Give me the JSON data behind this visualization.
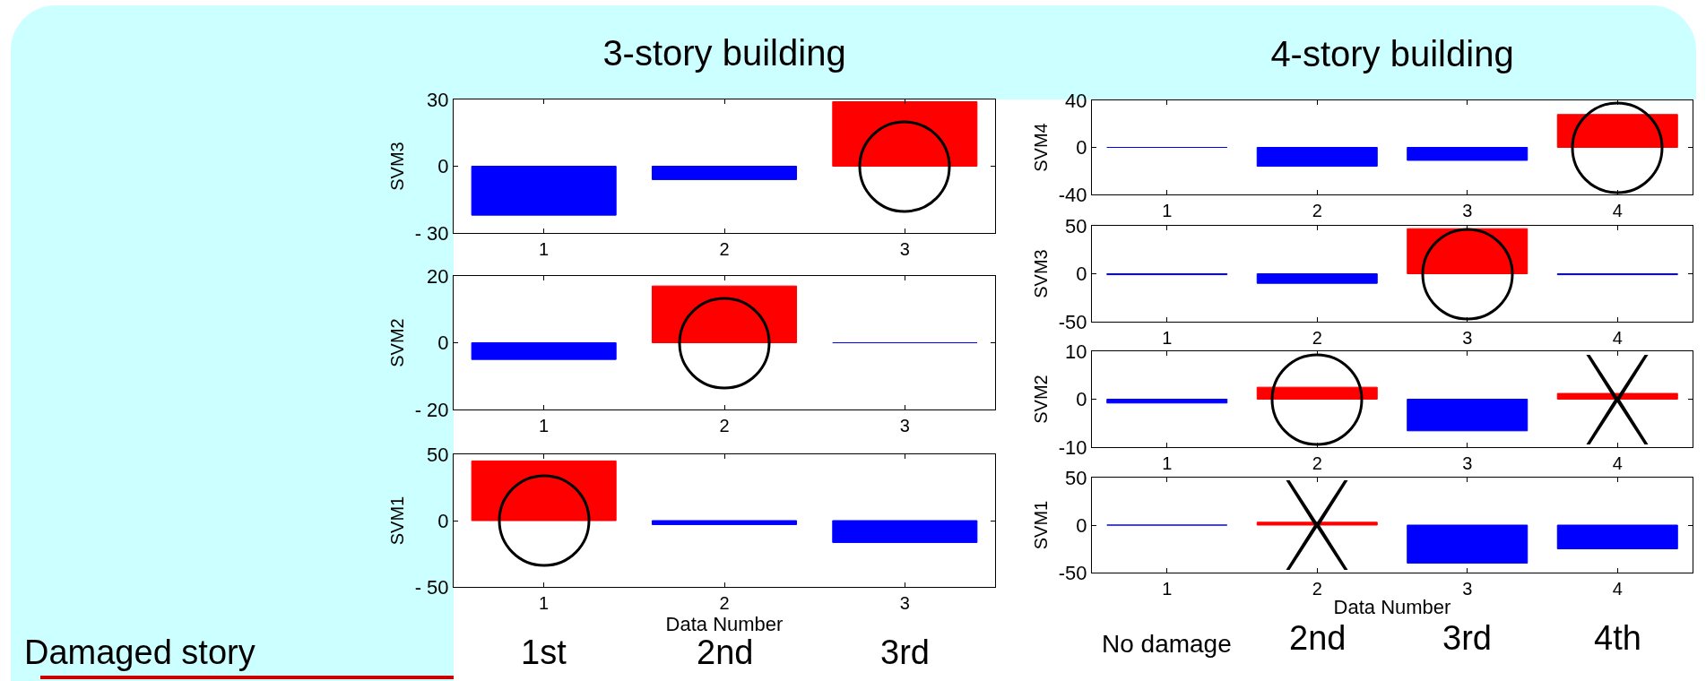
{
  "chart_data": [
    {
      "type": "bar",
      "title": "3-story building",
      "ylabel": "SVM3",
      "categories": [
        "1",
        "2",
        "3"
      ],
      "values": [
        -22,
        -6,
        29
      ],
      "colors": [
        "#0000ff",
        "#0000ff",
        "#ff0000"
      ],
      "ylim": [
        -30,
        30
      ],
      "yticks": [
        {
          "value": -30,
          "label": "- 30"
        },
        0,
        30
      ]
    },
    {
      "type": "bar",
      "ylabel": "SVM2",
      "categories": [
        "1",
        "2",
        "3"
      ],
      "values": [
        -5,
        17,
        0
      ],
      "colors": [
        "#0000ff",
        "#ff0000",
        "#0000ff"
      ],
      "ylim": [
        -20,
        20
      ],
      "yticks": [
        {
          "value": -20,
          "label": "- 20"
        },
        0,
        20
      ]
    },
    {
      "type": "bar",
      "ylabel": "SVM1",
      "xlabel": "Data Number",
      "categories": [
        "1",
        "2",
        "3"
      ],
      "values": [
        45,
        -3,
        -16.5
      ],
      "colors": [
        "#ff0000",
        "#0000ff",
        "#0000ff"
      ],
      "ylim": [
        -50,
        50
      ],
      "yticks": [
        {
          "value": -50,
          "label": "- 50"
        },
        0,
        50
      ],
      "annotations": [
        "Damaged story",
        "1st",
        "2nd",
        "3rd"
      ]
    },
    {
      "type": "bar",
      "title": "4-story building",
      "ylabel": "SVM4",
      "categories": [
        "1",
        "2",
        "3",
        "4"
      ],
      "values": [
        0,
        -16,
        -11,
        28
      ],
      "colors": [
        "#0000ff",
        "#0000ff",
        "#0000ff",
        "#ff0000"
      ],
      "ylim": [
        -40,
        40
      ],
      "yticks": [
        -40,
        0,
        40
      ]
    },
    {
      "type": "bar",
      "ylabel": "SVM3",
      "categories": [
        "1",
        "2",
        "3",
        "4"
      ],
      "values": [
        -1,
        -10,
        47,
        -1
      ],
      "colors": [
        "#0000ff",
        "#0000ff",
        "#ff0000",
        "#0000ff"
      ],
      "ylim": [
        -50,
        50
      ],
      "yticks": [
        -50,
        0,
        50
      ]
    },
    {
      "type": "bar",
      "ylabel": "SVM2",
      "categories": [
        "1",
        "2",
        "3",
        "4"
      ],
      "values": [
        -0.8,
        2.5,
        -6.6,
        1.2
      ],
      "colors": [
        "#0000ff",
        "#ff0000",
        "#0000ff",
        "#ff0000"
      ],
      "ylim": [
        -10,
        10
      ],
      "yticks": [
        -10,
        0,
        10
      ]
    },
    {
      "type": "bar",
      "ylabel": "SVM1",
      "xlabel": "Data Number",
      "categories": [
        "1",
        "2",
        "3",
        "4"
      ],
      "values": [
        0,
        3,
        -40,
        -25
      ],
      "colors": [
        "#0000ff",
        "#ff0000",
        "#0000ff",
        "#0000ff"
      ],
      "ylim": [
        -50,
        50
      ],
      "yticks": [
        -50,
        0,
        50
      ],
      "annotations": [
        "No damage",
        "2nd",
        "3rd",
        "4th"
      ]
    }
  ]
}
